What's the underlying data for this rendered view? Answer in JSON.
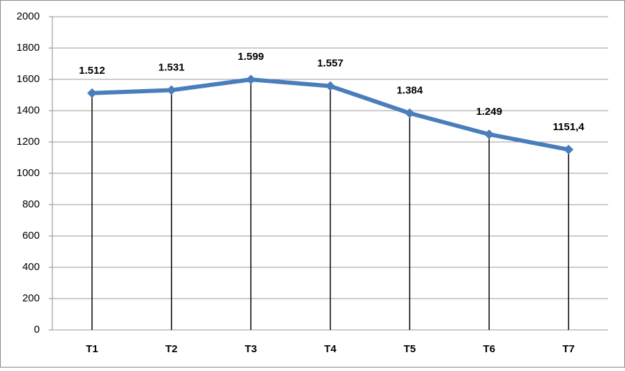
{
  "chart_data": {
    "type": "line",
    "categories": [
      "T1",
      "T2",
      "T3",
      "T4",
      "T5",
      "T6",
      "T7"
    ],
    "series": [
      {
        "color": "#4a7ebb",
        "values": [
          1512,
          1531,
          1599,
          1557,
          1384,
          1249,
          1151.4
        ],
        "value_labels": [
          "1.512",
          "1.531",
          "1.599",
          "1.557",
          "1.384",
          "1.249",
          "1151,4"
        ]
      }
    ],
    "ylim": [
      0,
      2000
    ],
    "yticks": [
      0,
      200,
      400,
      600,
      800,
      1000,
      1200,
      1400,
      1600,
      1800,
      2000
    ],
    "grid": true,
    "drop_lines": true
  }
}
